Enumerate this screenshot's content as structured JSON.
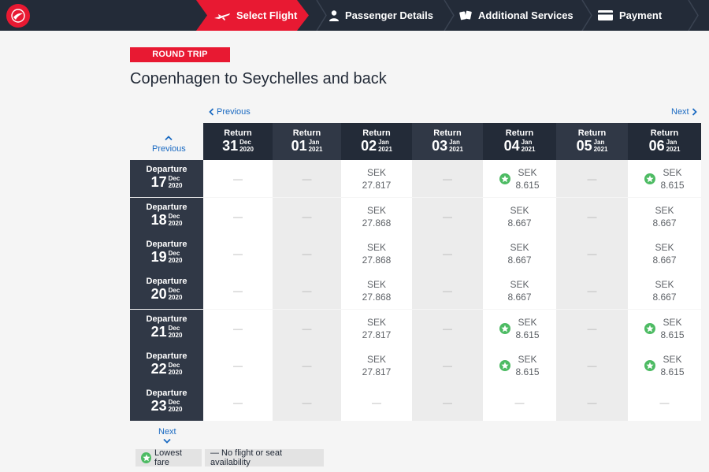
{
  "steps": [
    {
      "label": "Select Flight",
      "icon": "plane-icon",
      "active": true
    },
    {
      "label": "Passenger Details",
      "icon": "person-icon",
      "active": false
    },
    {
      "label": "Additional Services",
      "icon": "services-icon",
      "active": false
    },
    {
      "label": "Payment",
      "icon": "card-icon",
      "active": false
    }
  ],
  "trip_type": "ROUND TRIP",
  "route_title": "Copenhagen to Seychelles and back",
  "nav": {
    "prev": "Previous",
    "next": "Next",
    "up": "Previous",
    "down": "Next"
  },
  "return_label": "Return",
  "departure_label": "Departure",
  "columns": [
    {
      "day": "31",
      "month": "Dec",
      "year": "2020"
    },
    {
      "day": "01",
      "month": "Jan",
      "year": "2021"
    },
    {
      "day": "02",
      "month": "Jan",
      "year": "2021"
    },
    {
      "day": "03",
      "month": "Jan",
      "year": "2021"
    },
    {
      "day": "04",
      "month": "Jan",
      "year": "2021"
    },
    {
      "day": "05",
      "month": "Jan",
      "year": "2021"
    },
    {
      "day": "06",
      "month": "Jan",
      "year": "2021"
    }
  ],
  "rows": [
    {
      "day": "17",
      "month": "Dec",
      "year": "2020",
      "cells": [
        null,
        null,
        {
          "currency": "SEK",
          "amount": "27.817",
          "lowest": false
        },
        null,
        {
          "currency": "SEK",
          "amount": "8.615",
          "lowest": true
        },
        null,
        {
          "currency": "SEK",
          "amount": "8.615",
          "lowest": true
        }
      ]
    },
    {
      "day": "18",
      "month": "Dec",
      "year": "2020",
      "cells": [
        null,
        null,
        {
          "currency": "SEK",
          "amount": "27.868",
          "lowest": false
        },
        null,
        {
          "currency": "SEK",
          "amount": "8.667",
          "lowest": false
        },
        null,
        {
          "currency": "SEK",
          "amount": "8.667",
          "lowest": false
        }
      ]
    },
    {
      "day": "19",
      "month": "Dec",
      "year": "2020",
      "cells": [
        null,
        null,
        {
          "currency": "SEK",
          "amount": "27.868",
          "lowest": false
        },
        null,
        {
          "currency": "SEK",
          "amount": "8.667",
          "lowest": false
        },
        null,
        {
          "currency": "SEK",
          "amount": "8.667",
          "lowest": false
        }
      ]
    },
    {
      "day": "20",
      "month": "Dec",
      "year": "2020",
      "cells": [
        null,
        null,
        {
          "currency": "SEK",
          "amount": "27.868",
          "lowest": false
        },
        null,
        {
          "currency": "SEK",
          "amount": "8.667",
          "lowest": false
        },
        null,
        {
          "currency": "SEK",
          "amount": "8.667",
          "lowest": false
        }
      ]
    },
    {
      "day": "21",
      "month": "Dec",
      "year": "2020",
      "cells": [
        null,
        null,
        {
          "currency": "SEK",
          "amount": "27.817",
          "lowest": false
        },
        null,
        {
          "currency": "SEK",
          "amount": "8.615",
          "lowest": true
        },
        null,
        {
          "currency": "SEK",
          "amount": "8.615",
          "lowest": true
        }
      ]
    },
    {
      "day": "22",
      "month": "Dec",
      "year": "2020",
      "cells": [
        null,
        null,
        {
          "currency": "SEK",
          "amount": "27.817",
          "lowest": false
        },
        null,
        {
          "currency": "SEK",
          "amount": "8.615",
          "lowest": true
        },
        null,
        {
          "currency": "SEK",
          "amount": "8.615",
          "lowest": true
        }
      ]
    },
    {
      "day": "23",
      "month": "Dec",
      "year": "2020",
      "cells": [
        null,
        null,
        null,
        null,
        null,
        null,
        null
      ]
    }
  ],
  "no_flight_symbol": "—",
  "legend": {
    "lowest_fare": "Lowest fare",
    "no_availability": "— No flight or seat availability"
  },
  "colors": {
    "brand_red": "#e81932",
    "navy": "#232b38",
    "lowest_green": "#4dbb63",
    "link_blue": "#1a6ac2"
  }
}
